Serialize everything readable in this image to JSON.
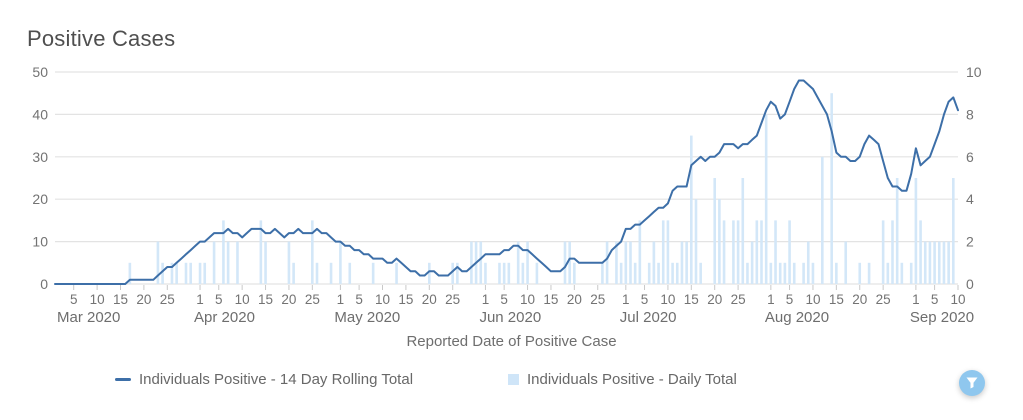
{
  "title": "Positive Cases",
  "x_axis_title": "Reported Date of Positive Case",
  "legend": {
    "items": [
      {
        "label": "Individuals Positive - 14 Day Rolling Total",
        "marker": "line-dash"
      },
      {
        "label": "Individuals Positive - Daily Total",
        "marker": "square"
      }
    ]
  },
  "filter_button": {
    "icon": "funnel-icon"
  },
  "colors": {
    "line": "#3d6fa8",
    "bar": "#d3e7f8",
    "grid": "#e3e3e3",
    "tick": "#c9c9c9",
    "axis_text": "#737373",
    "title_text": "#4f4f4f",
    "button": "#8fc7ee"
  },
  "chart_data": {
    "type": "line+bar",
    "title": "Positive Cases",
    "xlabel": "Reported Date of Positive Case",
    "grid": true,
    "legend_position": "bottom",
    "x_tick_days": [
      1,
      5,
      10,
      15,
      20,
      25
    ],
    "months": [
      {
        "key": "Mar",
        "name": "Mar 2020",
        "days": 31
      },
      {
        "key": "Apr",
        "name": "Apr 2020",
        "days": 30
      },
      {
        "key": "May",
        "name": "May 2020",
        "days": 31
      },
      {
        "key": "Jun",
        "name": "Jun 2020",
        "days": 30
      },
      {
        "key": "Jul",
        "name": "Jul 2020",
        "days": 31
      },
      {
        "key": "Aug",
        "name": "Aug 2020",
        "days": 31
      },
      {
        "key": "Sep",
        "name": "Sep 2020",
        "days": 10
      }
    ],
    "y_left": {
      "lim": [
        0,
        50
      ],
      "ticks": [
        0,
        10,
        20,
        30,
        40,
        50
      ],
      "series": "Individuals Positive - 14 Day Rolling Total"
    },
    "y_right": {
      "lim": [
        0,
        10
      ],
      "ticks": [
        0,
        2,
        4,
        6,
        8,
        10
      ],
      "series": "Individuals Positive - Daily Total"
    },
    "series": [
      {
        "name": "Individuals Positive - 14 Day Rolling Total",
        "type": "line",
        "axis": "left",
        "color": "#3d6fa8",
        "values_by_month": {
          "Mar": [
            0,
            0,
            0,
            0,
            0,
            0,
            0,
            0,
            0,
            0,
            0,
            0,
            0,
            0,
            0,
            0,
            1,
            1,
            1,
            1,
            1,
            1,
            2,
            3,
            4,
            4,
            5,
            6,
            7,
            8,
            9
          ],
          "Apr": [
            10,
            10,
            11,
            12,
            12,
            12,
            13,
            12,
            12,
            11,
            12,
            13,
            13,
            13,
            12,
            12,
            13,
            12,
            11,
            12,
            12,
            13,
            12,
            12,
            12,
            13,
            12,
            12,
            11,
            10
          ],
          "May": [
            10,
            9,
            9,
            8,
            8,
            7,
            7,
            6,
            6,
            6,
            5,
            5,
            6,
            5,
            4,
            3,
            3,
            2,
            2,
            3,
            3,
            2,
            2,
            2,
            3,
            4,
            3,
            3,
            4,
            5,
            6
          ],
          "Jun": [
            7,
            7,
            7,
            7,
            8,
            8,
            9,
            9,
            8,
            8,
            7,
            6,
            5,
            4,
            3,
            3,
            3,
            4,
            6,
            6,
            5,
            5,
            5,
            5,
            5,
            5,
            6,
            8,
            9,
            10
          ],
          "Jul": [
            13,
            13,
            14,
            14,
            15,
            16,
            17,
            18,
            18,
            19,
            22,
            23,
            23,
            23,
            28,
            29,
            30,
            29,
            30,
            30,
            31,
            33,
            33,
            33,
            32,
            33,
            33,
            34,
            35,
            38,
            41
          ],
          "Aug": [
            43,
            42,
            39,
            40,
            43,
            46,
            48,
            48,
            47,
            46,
            44,
            42,
            40,
            36,
            31,
            30,
            30,
            29,
            29,
            30,
            33,
            35,
            34,
            33,
            29,
            25,
            23,
            23,
            22,
            22,
            26
          ],
          "Sep": [
            32,
            28,
            29,
            30,
            33,
            36,
            40,
            43,
            44,
            41
          ]
        }
      },
      {
        "name": "Individuals Positive - Daily Total",
        "type": "bar",
        "axis": "right",
        "color": "#d3e7f8",
        "values_by_month": {
          "Mar": [
            0,
            0,
            0,
            0,
            0,
            0,
            0,
            0,
            0,
            0,
            0,
            0,
            0,
            0,
            0,
            0,
            1,
            0,
            0,
            0,
            0,
            0,
            2,
            1,
            0,
            1,
            1,
            0,
            1,
            1,
            0
          ],
          "Apr": [
            1,
            1,
            0,
            2,
            0,
            3,
            2,
            0,
            2,
            0,
            0,
            0,
            0,
            3,
            2,
            0,
            0,
            0,
            0,
            2,
            1,
            0,
            0,
            0,
            3,
            1,
            0,
            0,
            1,
            0
          ],
          "May": [
            2,
            0,
            1,
            0,
            0,
            0,
            0,
            1,
            0,
            0,
            0,
            0,
            1,
            0,
            0,
            0,
            0,
            0,
            0,
            1,
            0,
            0,
            0,
            0,
            1,
            1,
            0,
            0,
            2,
            2,
            2
          ],
          "Jun": [
            1,
            0,
            0,
            1,
            1,
            1,
            0,
            2,
            1,
            2,
            0,
            1,
            0,
            0,
            0,
            0,
            0,
            2,
            2,
            1,
            0,
            0,
            0,
            0,
            0,
            1,
            2,
            0,
            2,
            1
          ],
          "Jul": [
            2,
            2,
            1,
            3,
            0,
            1,
            2,
            1,
            3,
            3,
            1,
            1,
            2,
            2,
            7,
            4,
            1,
            0,
            0,
            5,
            4,
            3,
            0,
            3,
            3,
            5,
            1,
            2,
            3,
            3,
            8
          ],
          "Aug": [
            1,
            3,
            1,
            1,
            3,
            1,
            0,
            1,
            2,
            1,
            0,
            6,
            0,
            9,
            1,
            0,
            2,
            0,
            0,
            1,
            0,
            1,
            0,
            0,
            3,
            1,
            3,
            5,
            1,
            0,
            1
          ],
          "Sep": [
            5,
            3,
            2,
            2,
            2,
            2,
            2,
            2,
            5,
            0
          ]
        }
      }
    ]
  }
}
